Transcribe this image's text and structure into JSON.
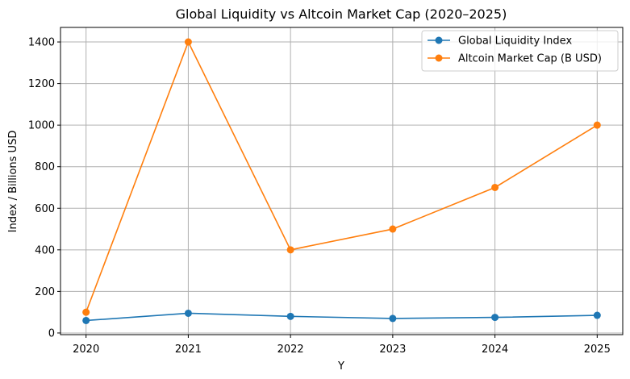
{
  "chart_data": {
    "type": "line",
    "title": "Global Liquidity vs Altcoin Market Cap (2020–2025)",
    "xlabel": "Y",
    "ylabel": "Index / Billions USD",
    "categories": [
      "2020",
      "2021",
      "2022",
      "2023",
      "2024",
      "2025"
    ],
    "x": [
      2020,
      2021,
      2022,
      2023,
      2024,
      2025
    ],
    "xlim": [
      2019.75,
      2025.25
    ],
    "ylim": [
      -8,
      1470
    ],
    "yticks": [
      0,
      200,
      400,
      600,
      800,
      1000,
      1200,
      1400
    ],
    "ytick_labels": [
      "0",
      "200",
      "400",
      "600",
      "800",
      "1000",
      "1200",
      "1400"
    ],
    "grid": true,
    "legend_position": "top-right",
    "series": [
      {
        "name": "Global Liquidity Index",
        "color": "#1f77b4",
        "marker": "circle",
        "values": [
          60,
          95,
          80,
          70,
          75,
          85
        ]
      },
      {
        "name": "Altcoin Market Cap (B USD)",
        "color": "#ff7f0e",
        "marker": "circle",
        "values": [
          100,
          1400,
          400,
          500,
          700,
          1000
        ]
      }
    ]
  }
}
